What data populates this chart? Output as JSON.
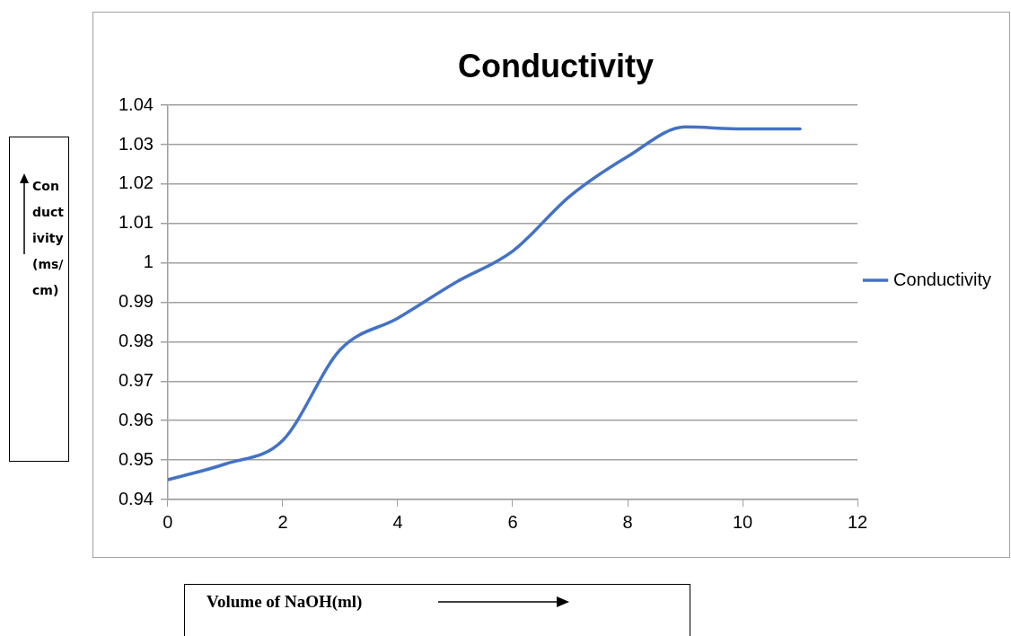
{
  "chart_data": {
    "type": "line",
    "title": "Conductivity",
    "xlabel": "Volume of NaOH(ml)",
    "ylabel": "Conductivity(ms/cm)",
    "x": [
      0,
      1,
      2,
      3,
      4,
      5,
      6,
      7,
      8,
      9,
      10,
      11
    ],
    "series": [
      {
        "name": "Conductivity",
        "color": "#4472c4",
        "values": [
          0.945,
          0.949,
          0.955,
          0.978,
          0.986,
          0.995,
          1.003,
          1.017,
          1.027,
          1.0345,
          1.034,
          1.034
        ]
      }
    ],
    "xlim": [
      0,
      12
    ],
    "xticks": [
      0,
      2,
      4,
      6,
      8,
      10,
      12
    ],
    "ylim": [
      0.94,
      1.04
    ],
    "yticks": [
      0.94,
      0.95,
      0.96,
      0.97,
      0.98,
      0.99,
      1,
      1.01,
      1.02,
      1.03,
      1.04
    ],
    "grid": "y",
    "legend": "right",
    "marker": "none",
    "line_style": "solid"
  }
}
